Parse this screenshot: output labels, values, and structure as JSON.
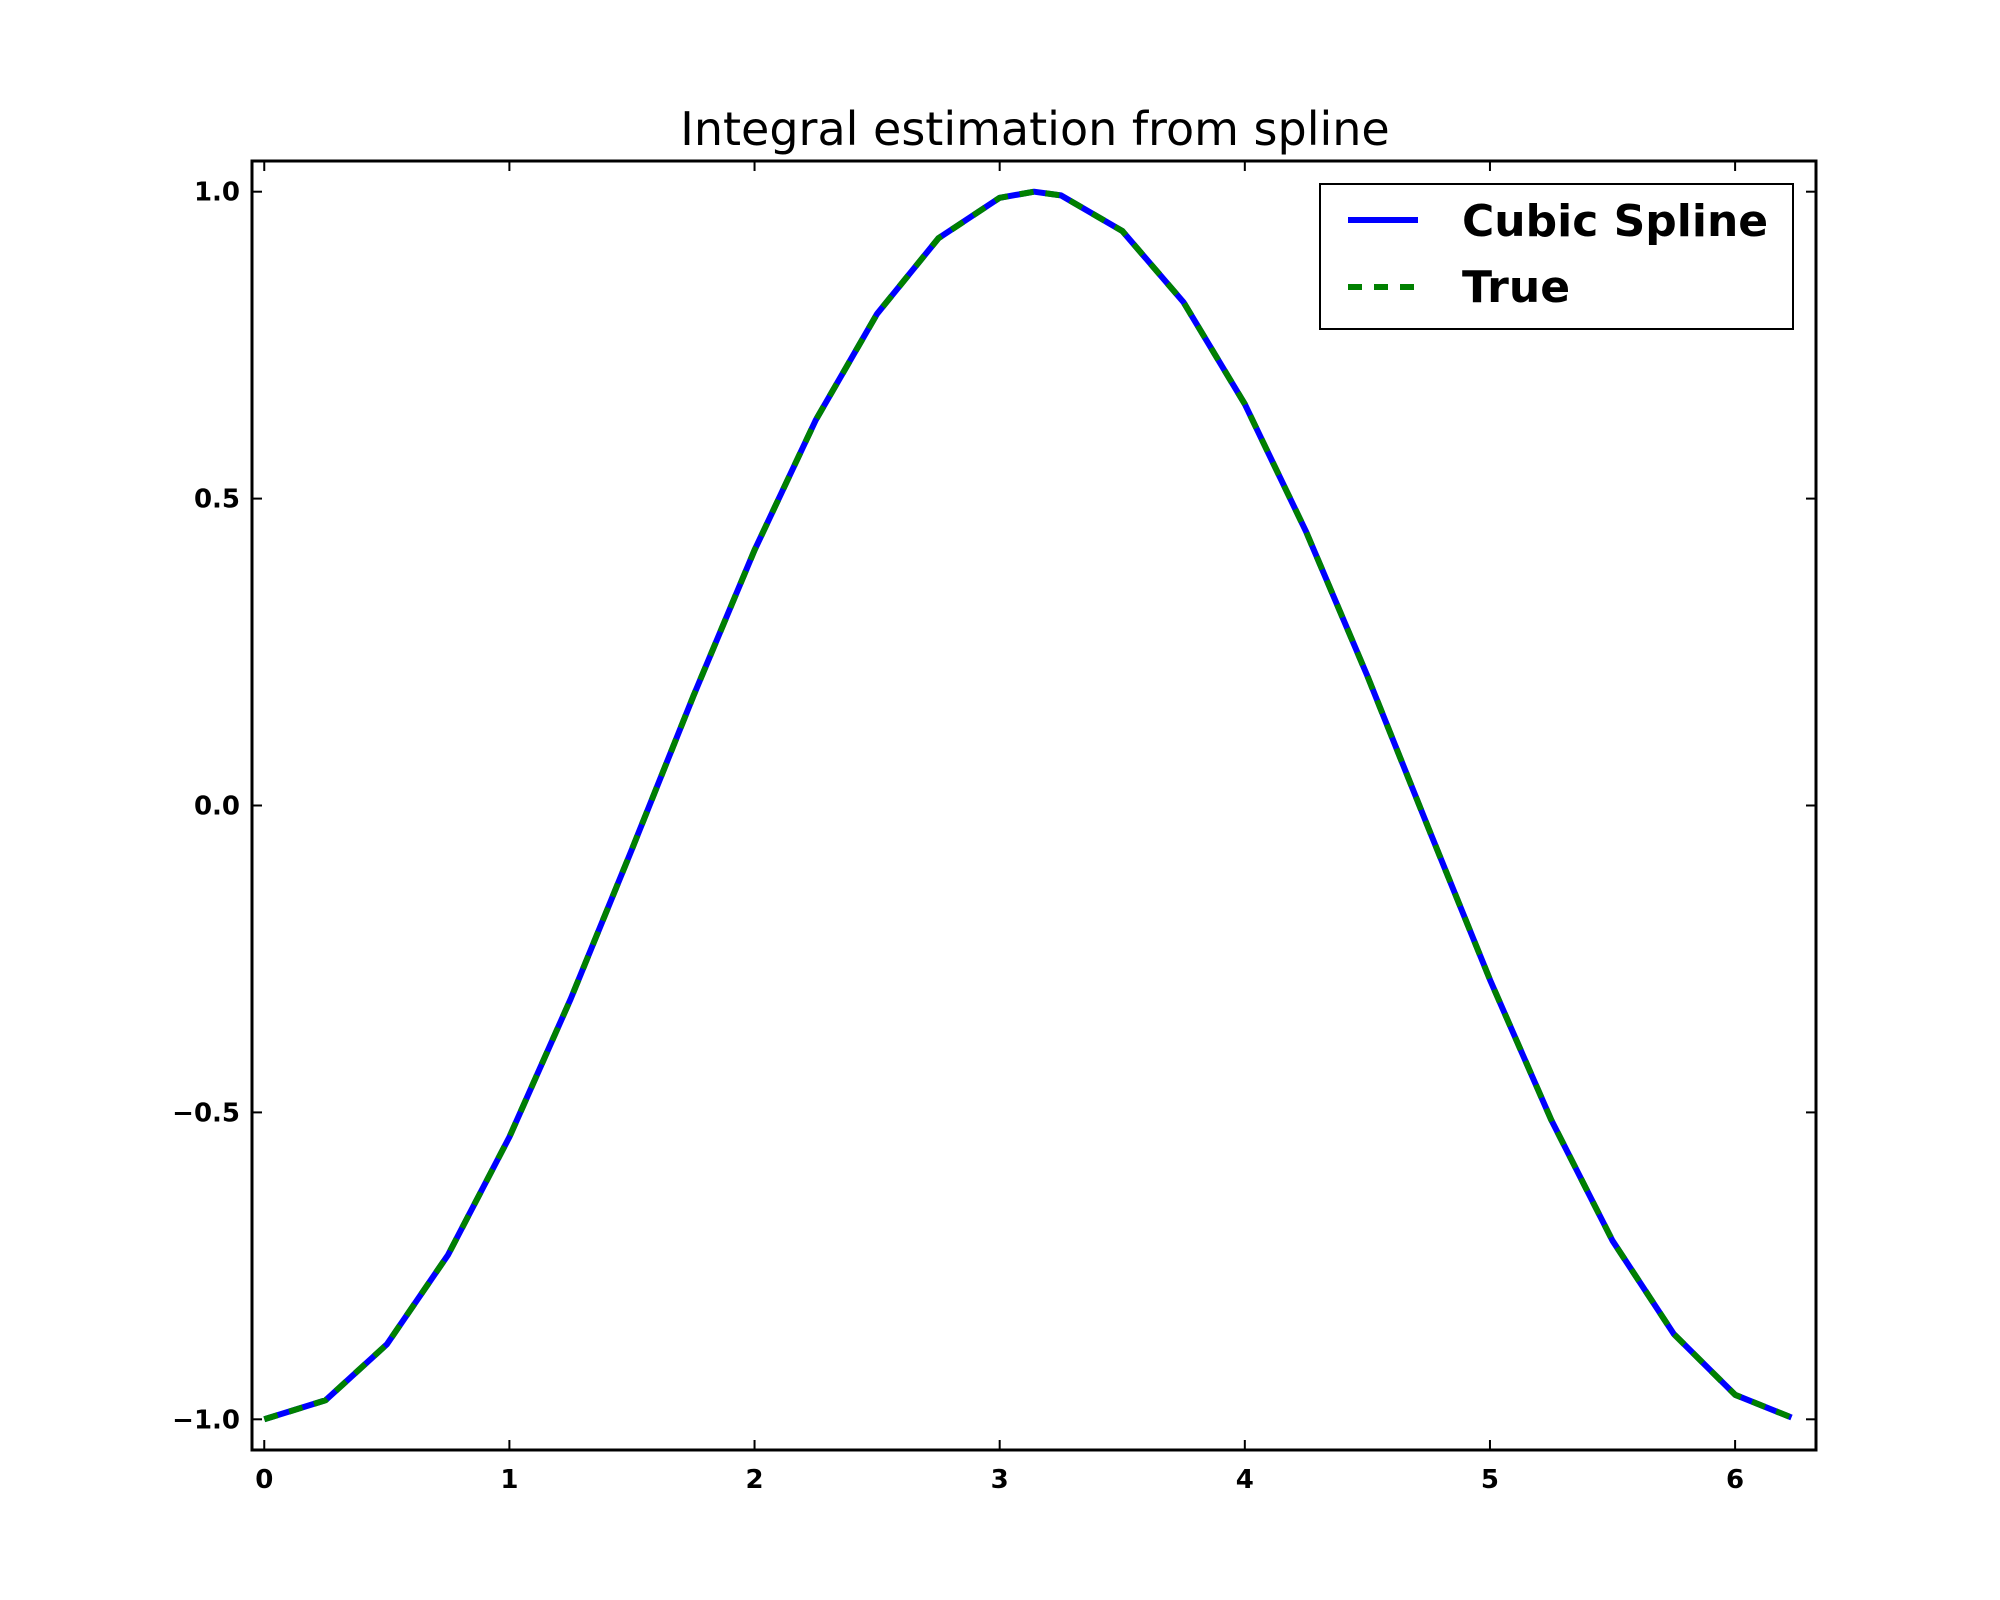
{
  "chart_data": {
    "type": "line",
    "title": "Integral estimation from spline",
    "xlabel": "",
    "ylabel": "",
    "xlim": [
      -0.05,
      6.33
    ],
    "ylim": [
      -1.05,
      1.05
    ],
    "grid": false,
    "legend_position": "top-right",
    "x_ticks": [
      0,
      1,
      2,
      3,
      4,
      5,
      6
    ],
    "x_tick_labels": [
      "0",
      "1",
      "2",
      "3",
      "4",
      "5",
      "6"
    ],
    "y_ticks": [
      -1.0,
      -0.5,
      0.0,
      0.5,
      1.0
    ],
    "y_tick_labels": [
      "−1.0",
      "−0.5",
      "0.0",
      "0.5",
      "1.0"
    ],
    "x": [
      0.0,
      0.25,
      0.5,
      0.75,
      1.0,
      1.25,
      1.5,
      1.75,
      2.0,
      2.25,
      2.5,
      2.75,
      3.0,
      3.14,
      3.25,
      3.5,
      3.75,
      4.0,
      4.25,
      4.5,
      4.75,
      5.0,
      5.25,
      5.5,
      5.75,
      6.0,
      6.23
    ],
    "series": [
      {
        "name": "Cubic Spline",
        "color": "#0000ff",
        "style": "solid",
        "values": [
          -1.0,
          -0.969,
          -0.878,
          -0.732,
          -0.54,
          -0.315,
          -0.071,
          0.178,
          0.416,
          0.628,
          0.801,
          0.924,
          0.99,
          1.0,
          0.994,
          0.936,
          0.82,
          0.654,
          0.446,
          0.211,
          -0.038,
          -0.284,
          -0.512,
          -0.709,
          -0.861,
          -0.96,
          -0.997
        ]
      },
      {
        "name": "True",
        "color": "#008000",
        "style": "dashed",
        "values": [
          -1.0,
          -0.969,
          -0.878,
          -0.732,
          -0.54,
          -0.315,
          -0.071,
          0.178,
          0.416,
          0.628,
          0.801,
          0.924,
          0.99,
          1.0,
          0.994,
          0.936,
          0.82,
          0.654,
          0.446,
          0.211,
          -0.038,
          -0.284,
          -0.512,
          -0.709,
          -0.861,
          -0.96,
          -0.997
        ]
      }
    ]
  }
}
